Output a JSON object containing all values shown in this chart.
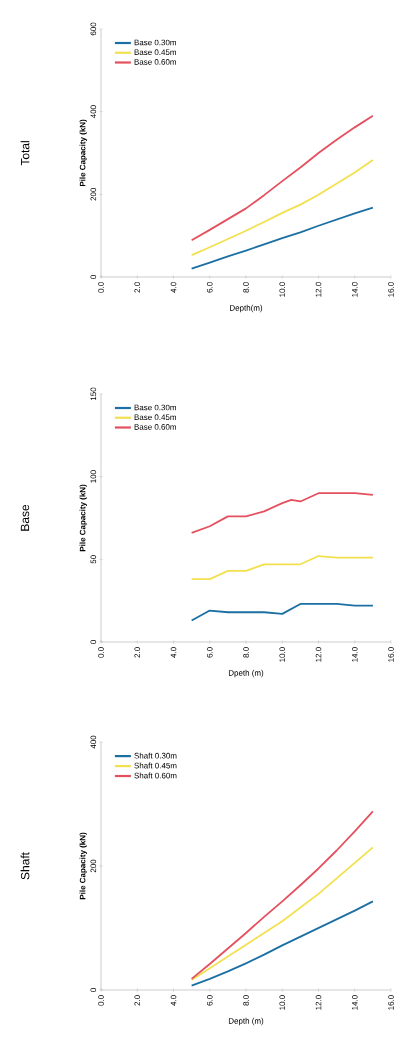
{
  "chart_data": [
    {
      "type": "line",
      "title": "Shaft",
      "xlabel": "Depth (m)",
      "ylabel": "Pile Capacity (kN)",
      "xlim": [
        0,
        16
      ],
      "ylim": [
        0,
        400
      ],
      "xticks": [
        {
          "value": 0,
          "label": "0.0"
        },
        {
          "value": 2,
          "label": "2.0"
        },
        {
          "value": 4,
          "label": "4.0"
        },
        {
          "value": 6,
          "label": "6.0"
        },
        {
          "value": 8,
          "label": "8.0"
        },
        {
          "value": 10,
          "label": "10.0"
        },
        {
          "value": 12,
          "label": "12.0"
        },
        {
          "value": 14,
          "label": "14.0"
        },
        {
          "value": 16,
          "label": "16.0"
        }
      ],
      "yticks": [
        0,
        200,
        400
      ],
      "legend": "top left",
      "series": [
        {
          "name": "Shaft 0.30m",
          "color": "#1b6fa3",
          "x": [
            5,
            6,
            7,
            8,
            9,
            10,
            11,
            12,
            13,
            14,
            15
          ],
          "values": [
            7,
            18,
            30,
            43,
            57,
            72,
            86,
            100,
            114,
            128,
            143
          ]
        },
        {
          "name": "Shaft 0.45m",
          "color": "#f2e04e",
          "x": [
            5,
            6,
            7,
            8,
            9,
            10,
            11,
            12,
            13,
            14,
            15
          ],
          "values": [
            16,
            35,
            54,
            73,
            92,
            111,
            133,
            155,
            180,
            205,
            230
          ]
        },
        {
          "name": "Shaft 0.60m",
          "color": "#e4505e",
          "x": [
            5,
            6,
            7,
            8,
            9,
            10,
            11,
            12,
            13,
            14,
            15
          ],
          "values": [
            18,
            42,
            67,
            92,
            118,
            143,
            169,
            196,
            225,
            256,
            288
          ]
        }
      ]
    },
    {
      "type": "line",
      "title": "Base",
      "xlabel": "Dpeth (m)",
      "ylabel": "Pile Capacity (kN)",
      "xlim": [
        0,
        16
      ],
      "ylim": [
        0,
        150
      ],
      "xticks": [
        {
          "value": 0,
          "label": "0.0"
        },
        {
          "value": 2,
          "label": "2.0"
        },
        {
          "value": 4,
          "label": "4.0"
        },
        {
          "value": 6,
          "label": "6.0"
        },
        {
          "value": 8,
          "label": "8.0"
        },
        {
          "value": 10,
          "label": "10.0"
        },
        {
          "value": 12,
          "label": "12.0"
        },
        {
          "value": 14,
          "label": "14.0"
        },
        {
          "value": 16,
          "label": "16.0"
        }
      ],
      "yticks": [
        0,
        50,
        100,
        150
      ],
      "legend": "top left",
      "series": [
        {
          "name": "Base 0.30m",
          "color": "#1b6fa3",
          "x": [
            5,
            6,
            7,
            8,
            9,
            10,
            10.5,
            11,
            12,
            13,
            14,
            15
          ],
          "values": [
            13,
            19,
            18,
            18,
            18,
            17,
            20,
            23,
            23,
            23,
            22,
            22
          ]
        },
        {
          "name": "Base 0.45m",
          "color": "#f2e04e",
          "x": [
            5,
            6,
            7,
            8,
            9,
            10,
            11,
            12,
            13,
            14,
            15
          ],
          "values": [
            38,
            38,
            43,
            43,
            47,
            47,
            47,
            52,
            51,
            51,
            51
          ]
        },
        {
          "name": "Base 0.60m",
          "color": "#e4505e",
          "x": [
            5,
            6,
            7,
            8,
            9,
            10,
            10.5,
            11,
            12,
            13,
            14,
            15
          ],
          "values": [
            66,
            70,
            76,
            76,
            79,
            84,
            86,
            85,
            90,
            90,
            90,
            89
          ]
        }
      ]
    },
    {
      "type": "line",
      "title": "Total",
      "xlabel": "Depth(m)",
      "ylabel": "Pile Capacity (kN)",
      "xlim": [
        0,
        16
      ],
      "ylim": [
        0,
        600
      ],
      "xticks": [
        {
          "value": 0,
          "label": "0.0"
        },
        {
          "value": 2,
          "label": "2.0"
        },
        {
          "value": 4,
          "label": "4.0"
        },
        {
          "value": 6,
          "label": "6.0"
        },
        {
          "value": 8,
          "label": "8.0"
        },
        {
          "value": 10,
          "label": "10.0"
        },
        {
          "value": 12,
          "label": "12.0"
        },
        {
          "value": 14,
          "label": "14.0"
        },
        {
          "value": 16,
          "label": "16.0"
        }
      ],
      "yticks": [
        0,
        200,
        400,
        600
      ],
      "legend": "top left",
      "series": [
        {
          "name": "Base 0.30m",
          "color": "#1b6fa3",
          "x": [
            5,
            6,
            7,
            8,
            9,
            10,
            11,
            12,
            13,
            14,
            15
          ],
          "values": [
            20,
            35,
            50,
            64,
            79,
            94,
            108,
            124,
            139,
            154,
            168
          ]
        },
        {
          "name": "Base 0.45m",
          "color": "#f2e04e",
          "x": [
            5,
            6,
            7,
            8,
            9,
            10,
            11,
            12,
            13,
            14,
            15
          ],
          "values": [
            53,
            72,
            92,
            112,
            133,
            155,
            175,
            199,
            226,
            253,
            283
          ]
        },
        {
          "name": "Base 0.60m",
          "color": "#e4505e",
          "x": [
            5,
            6,
            7,
            8,
            9,
            10,
            11,
            12,
            13,
            14,
            15
          ],
          "values": [
            89,
            114,
            140,
            166,
            198,
            232,
            265,
            300,
            332,
            362,
            390
          ]
        }
      ]
    }
  ]
}
